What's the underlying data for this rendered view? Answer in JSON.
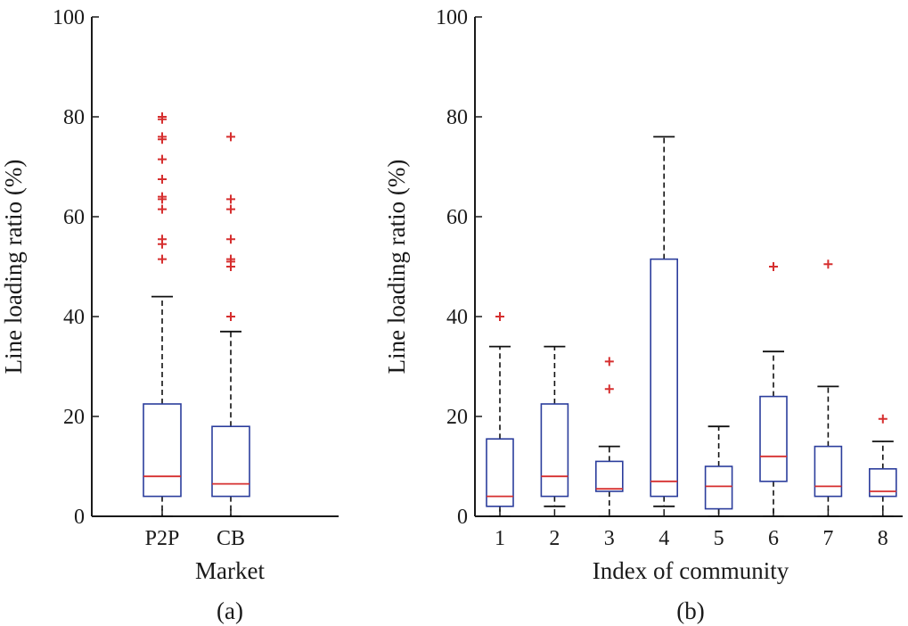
{
  "colors": {
    "box": "#2b3d9c",
    "median": "#d62f2f",
    "outlier": "#d62f2f",
    "axis": "#1a1a1a",
    "whisker": "#111111"
  },
  "chart_data": [
    {
      "type": "box",
      "panel_label": "(a)",
      "xlabel": "Market",
      "ylabel": "Line loading ratio (%)",
      "ylim": [
        0,
        100
      ],
      "yticks": [
        0,
        20,
        40,
        60,
        80,
        100
      ],
      "categories": [
        "P2P",
        "CB"
      ],
      "boxes": [
        {
          "q1": 4,
          "median": 8,
          "q3": 22.5,
          "whisker_low": 0,
          "whisker_high": 44,
          "outliers": [
            51.5,
            54.5,
            55.5,
            61.5,
            63.5,
            64,
            67.5,
            71.5,
            75.5,
            76,
            79.5,
            80
          ]
        },
        {
          "q1": 4,
          "median": 6.5,
          "q3": 18,
          "whisker_low": 0,
          "whisker_high": 37,
          "outliers": [
            40,
            50,
            51,
            51.5,
            55.5,
            61.5,
            63.5,
            76
          ]
        }
      ]
    },
    {
      "type": "box",
      "panel_label": "(b)",
      "xlabel": "Index of community",
      "ylabel": "Line loading ratio (%)",
      "ylim": [
        0,
        100
      ],
      "yticks": [
        0,
        20,
        40,
        60,
        80,
        100
      ],
      "categories": [
        "1",
        "2",
        "3",
        "4",
        "5",
        "6",
        "7",
        "8"
      ],
      "boxes": [
        {
          "q1": 2,
          "median": 4,
          "q3": 15.5,
          "whisker_low": 0,
          "whisker_high": 34,
          "outliers": [
            40
          ]
        },
        {
          "q1": 4,
          "median": 8,
          "q3": 22.5,
          "whisker_low": 2,
          "whisker_high": 34,
          "outliers": []
        },
        {
          "q1": 5,
          "median": 5.5,
          "q3": 11,
          "whisker_low": 0,
          "whisker_high": 14,
          "outliers": [
            25.5,
            31
          ]
        },
        {
          "q1": 4,
          "median": 7,
          "q3": 51.5,
          "whisker_low": 2,
          "whisker_high": 76,
          "outliers": []
        },
        {
          "q1": 1.5,
          "median": 6,
          "q3": 10,
          "whisker_low": 0,
          "whisker_high": 18,
          "outliers": []
        },
        {
          "q1": 7,
          "median": 12,
          "q3": 24,
          "whisker_low": 0,
          "whisker_high": 33,
          "outliers": [
            50
          ]
        },
        {
          "q1": 4,
          "median": 6,
          "q3": 14,
          "whisker_low": 0,
          "whisker_high": 26,
          "outliers": [
            50.5
          ]
        },
        {
          "q1": 4,
          "median": 5,
          "q3": 9.5,
          "whisker_low": 0,
          "whisker_high": 15,
          "outliers": [
            19.5
          ]
        }
      ]
    }
  ]
}
